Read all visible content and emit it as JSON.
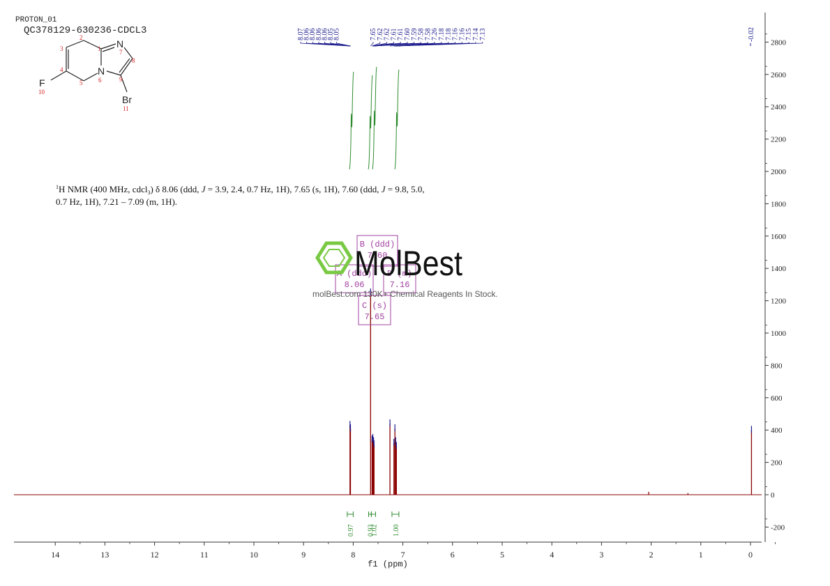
{
  "header": {
    "line1": "PROTON_01",
    "line2": "QC378129-630236-CDCL3"
  },
  "structure": {
    "atoms": [
      {
        "id": "1",
        "symbol": ""
      },
      {
        "id": "2",
        "symbol": ""
      },
      {
        "id": "3",
        "symbol": ""
      },
      {
        "id": "4",
        "symbol": ""
      },
      {
        "id": "5",
        "symbol": ""
      },
      {
        "id": "6",
        "symbol": "N"
      },
      {
        "id": "7",
        "symbol": "N"
      },
      {
        "id": "8",
        "symbol": ""
      },
      {
        "id": "9",
        "symbol": ""
      },
      {
        "id": "10",
        "symbol": "F"
      },
      {
        "id": "11",
        "symbol": "Br"
      }
    ]
  },
  "description": {
    "sup": "1",
    "line1_a": "H NMR (400 MHz, cdcl",
    "line1_sub": "3",
    "line1_b": ") δ 8.06 (ddd, ",
    "j": "J",
    "line1_c": " = 3.9, 2.4, 0.7 Hz, 1H), 7.65 (s, 1H), 7.60 (ddd, ",
    "line1_d": " = 9.8, 5.0,",
    "line2": "0.7 Hz, 1H), 7.21 – 7.09 (m, 1H)."
  },
  "watermark": {
    "logo": "MolBest",
    "tagline": "molBest.com 130K+ Chemical Reagents In Stock."
  },
  "multiplet_boxes": [
    {
      "label": "B (ddd)",
      "value": "7.60"
    },
    {
      "label": "A (ddd)",
      "value": "8.06"
    },
    {
      "label": "D (m)",
      "value": "7.16"
    },
    {
      "label": "C (s)",
      "value": "7.65"
    }
  ],
  "chart_data": {
    "type": "line",
    "xlabel": "f1 (ppm)",
    "xlim": [
      15.0,
      -0.2
    ],
    "ylim": [
      -300,
      2950
    ],
    "x_ticks": [
      "14",
      "13",
      "12",
      "11",
      "10",
      "9",
      "8",
      "7",
      "6",
      "5",
      "4",
      "3",
      "2",
      "1",
      "0"
    ],
    "y_ticks": [
      "2800",
      "2600",
      "2400",
      "2200",
      "2000",
      "1800",
      "1600",
      "1400",
      "1200",
      "1000",
      "800",
      "600",
      "400",
      "200",
      "0",
      "-200"
    ],
    "peak_labels_left": [
      "8.07",
      "8.06",
      "8.06",
      "8.06",
      "8.06",
      "8.05",
      "8.05"
    ],
    "peak_labels_mid": [
      "7.65",
      "7.62",
      "7.62",
      "7.61",
      "7.61",
      "7.60",
      "7.59",
      "7.58",
      "7.58",
      "7.26",
      "7.18",
      "7.18",
      "7.16",
      "7.16",
      "7.15",
      "7.14",
      "7.13"
    ],
    "peak_labels_right": [
      "-0.02"
    ],
    "spectrum_peaks": [
      {
        "ppm": 8.065,
        "height": 430
      },
      {
        "ppm": 8.055,
        "height": 410
      },
      {
        "ppm": 7.65,
        "height": 1250
      },
      {
        "ppm": 7.62,
        "height": 340
      },
      {
        "ppm": 7.605,
        "height": 350
      },
      {
        "ppm": 7.59,
        "height": 330
      },
      {
        "ppm": 7.58,
        "height": 310
      },
      {
        "ppm": 7.26,
        "height": 440
      },
      {
        "ppm": 7.18,
        "height": 320
      },
      {
        "ppm": 7.16,
        "height": 410
      },
      {
        "ppm": 7.145,
        "height": 330
      },
      {
        "ppm": 7.13,
        "height": 300
      },
      {
        "ppm": 2.05,
        "height": 18
      },
      {
        "ppm": 1.26,
        "height": 10
      },
      {
        "ppm": -0.02,
        "height": 400
      }
    ],
    "integrals": [
      {
        "from": 8.12,
        "to": 8.0,
        "value": "0.97"
      },
      {
        "from": 7.69,
        "to": 7.635,
        "value": "0.93"
      },
      {
        "from": 7.635,
        "to": 7.55,
        "value": "1.02"
      },
      {
        "from": 7.22,
        "to": 7.08,
        "value": "1.00"
      }
    ],
    "colors": {
      "spectrum": "#8b0000",
      "peak_pick": "#1a1a8c",
      "integral": "#2e8b2e",
      "atom_label": "#d62020",
      "box": "#a040a0",
      "watermark": "#7ac943"
    }
  }
}
